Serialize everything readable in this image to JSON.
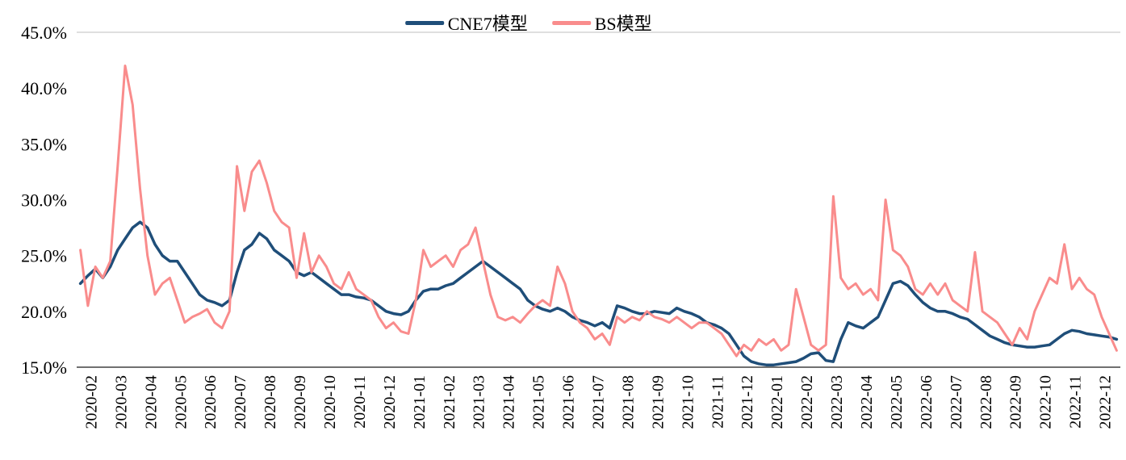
{
  "chart_data": {
    "type": "line",
    "title": "",
    "legend_position": "top-center",
    "grid": "top-border-and-bottom-axis-only",
    "ylim": [
      15,
      45
    ],
    "yticks": [
      15,
      20,
      25,
      30,
      35,
      40,
      45
    ],
    "ytick_labels": [
      "15.0%",
      "20.0%",
      "25.0%",
      "30.0%",
      "35.0%",
      "40.0%",
      "45.0%"
    ],
    "points_per_month": 4,
    "categories": [
      "2020-02",
      "2020-03",
      "2020-04",
      "2020-05",
      "2020-06",
      "2020-07",
      "2020-08",
      "2020-09",
      "2020-10",
      "2020-11",
      "2020-12",
      "2021-01",
      "2021-02",
      "2021-03",
      "2021-04",
      "2021-05",
      "2021-06",
      "2021-07",
      "2021-08",
      "2021-09",
      "2021-10",
      "2021-11",
      "2021-12",
      "2022-01",
      "2022-02",
      "2022-03",
      "2022-04",
      "2022-05",
      "2022-06",
      "2022-07",
      "2022-08",
      "2022-09",
      "2022-10",
      "2022-11",
      "2022-12"
    ],
    "series": [
      {
        "name": "CNE7模型",
        "color": "#1F4E79",
        "width": 3.5,
        "values": [
          22.5,
          23.2,
          23.8,
          23.0,
          24.0,
          25.5,
          26.5,
          27.5,
          28.0,
          27.5,
          26.0,
          25.0,
          24.5,
          24.5,
          23.5,
          22.5,
          21.5,
          21.0,
          20.8,
          20.5,
          21.0,
          23.5,
          25.5,
          26.0,
          27.0,
          26.5,
          25.5,
          25.0,
          24.5,
          23.5,
          23.2,
          23.5,
          23.0,
          22.5,
          22.0,
          21.5,
          21.5,
          21.3,
          21.2,
          21.0,
          20.5,
          20.0,
          19.8,
          19.7,
          20.0,
          21.0,
          21.8,
          22.0,
          22.0,
          22.3,
          22.5,
          23.0,
          23.5,
          24.0,
          24.5,
          24.0,
          23.5,
          23.0,
          22.5,
          22.0,
          21.0,
          20.5,
          20.2,
          20.0,
          20.3,
          20.0,
          19.5,
          19.2,
          19.0,
          18.7,
          19.0,
          18.5,
          20.5,
          20.3,
          20.0,
          19.8,
          19.8,
          20.0,
          19.9,
          19.8,
          20.3,
          20.0,
          19.8,
          19.5,
          19.0,
          18.8,
          18.5,
          18.0,
          17.0,
          16.0,
          15.5,
          15.3,
          15.2,
          15.2,
          15.3,
          15.4,
          15.5,
          15.8,
          16.2,
          16.3,
          15.6,
          15.5,
          17.5,
          19.0,
          18.7,
          18.5,
          19.0,
          19.5,
          21.0,
          22.5,
          22.7,
          22.3,
          21.5,
          20.8,
          20.3,
          20.0,
          20.0,
          19.8,
          19.5,
          19.3,
          18.8,
          18.3,
          17.8,
          17.5,
          17.2,
          17.0,
          16.9,
          16.8,
          16.8,
          16.9,
          17.0,
          17.5,
          18.0,
          18.3,
          18.2,
          18.0,
          17.9,
          17.8,
          17.7,
          17.5
        ]
      },
      {
        "name": "BS模型",
        "color": "#F98C8C",
        "width": 3,
        "values": [
          25.5,
          20.5,
          24.0,
          23.0,
          24.5,
          33.0,
          42.0,
          38.5,
          31.0,
          25.0,
          21.5,
          22.5,
          23.0,
          21.0,
          19.0,
          19.5,
          19.8,
          20.2,
          19.0,
          18.5,
          20.0,
          33.0,
          29.0,
          32.5,
          33.5,
          31.5,
          29.0,
          28.0,
          27.5,
          23.0,
          27.0,
          23.5,
          25.0,
          24.0,
          22.5,
          22.0,
          23.5,
          22.0,
          21.5,
          21.0,
          19.5,
          18.5,
          19.0,
          18.2,
          18.0,
          21.0,
          25.5,
          24.0,
          24.5,
          25.0,
          24.0,
          25.5,
          26.0,
          27.5,
          24.5,
          21.5,
          19.5,
          19.2,
          19.5,
          19.0,
          19.8,
          20.5,
          21.0,
          20.5,
          24.0,
          22.5,
          20.0,
          19.0,
          18.5,
          17.5,
          18.0,
          17.0,
          19.5,
          19.0,
          19.5,
          19.2,
          20.0,
          19.5,
          19.3,
          19.0,
          19.5,
          19.0,
          18.5,
          19.0,
          19.0,
          18.5,
          18.0,
          17.0,
          16.0,
          17.0,
          16.5,
          17.5,
          17.0,
          17.5,
          16.5,
          17.0,
          22.0,
          19.5,
          17.0,
          16.5,
          17.0,
          30.3,
          23.0,
          22.0,
          22.5,
          21.5,
          22.0,
          21.0,
          30.0,
          25.5,
          25.0,
          24.0,
          22.0,
          21.5,
          22.5,
          21.5,
          22.5,
          21.0,
          20.5,
          20.0,
          25.3,
          20.0,
          19.5,
          19.0,
          18.0,
          17.0,
          18.5,
          17.5,
          20.0,
          21.5,
          23.0,
          22.5,
          26.0,
          22.0,
          23.0,
          22.0,
          21.5,
          19.5,
          18.0,
          16.5
        ]
      }
    ],
    "axis_colors": {
      "top_border": "#bfbfbf",
      "bottom_axis": "#404040"
    }
  }
}
